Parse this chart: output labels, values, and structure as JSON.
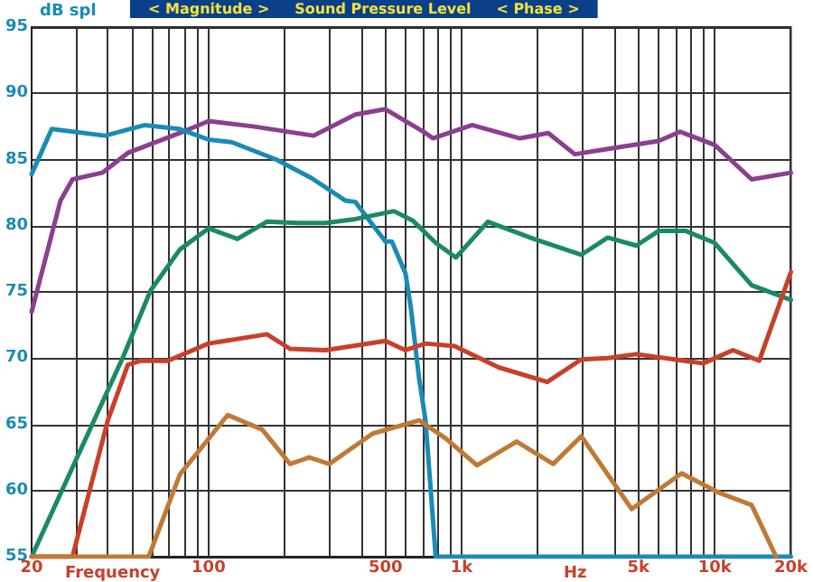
{
  "chart_data": {
    "type": "line",
    "title": "< Magnitude >     Sound Pressure Level     < Phase >",
    "ylabel": "dB spl",
    "xlabel": "Frequency",
    "annotations": [
      "Hz"
    ],
    "log": "x",
    "grid": true,
    "marker": "none",
    "line_style": "solid",
    "xlim": [
      20,
      20000
    ],
    "ylim": [
      55,
      95
    ],
    "xticks": [
      20,
      {
        "value": 30,
        "label": null
      },
      {
        "value": 40,
        "label": null
      },
      {
        "value": 50,
        "label": null
      },
      {
        "value": 60,
        "label": null
      },
      {
        "value": 70,
        "label": null
      },
      {
        "value": 80,
        "label": null
      },
      {
        "value": 90,
        "label": null
      },
      100,
      {
        "value": 200,
        "label": null
      },
      {
        "value": 300,
        "label": null
      },
      {
        "value": 400,
        "label": null
      },
      500,
      {
        "value": 600,
        "label": null
      },
      {
        "value": 700,
        "label": null
      },
      {
        "value": 800,
        "label": null
      },
      {
        "value": 900,
        "label": null
      },
      {
        "value": 1000,
        "label": "1k"
      },
      {
        "value": 2000,
        "label": null
      },
      {
        "value": 3000,
        "label": null
      },
      {
        "value": 4000,
        "label": null
      },
      {
        "value": 5000,
        "label": "5k"
      },
      {
        "value": 6000,
        "label": null
      },
      {
        "value": 7000,
        "label": null
      },
      {
        "value": 8000,
        "label": null
      },
      {
        "value": 9000,
        "label": null
      },
      {
        "value": 10000,
        "label": "10k"
      },
      {
        "value": 20000,
        "label": "20k"
      }
    ],
    "yticks": [
      55,
      60,
      65,
      70,
      75,
      80,
      85,
      90,
      95
    ],
    "series": [
      {
        "color": "#8b3f8f",
        "x": [
          20,
          26,
          29,
          38,
          48,
          77,
          100,
          150,
          260,
          380,
          500,
          720,
          770,
          1100,
          1700,
          2200,
          2800,
          3800,
          6000,
          7300,
          10000,
          14000,
          20000
        ],
        "values": [
          73.5,
          81.9,
          83.5,
          84.0,
          85.5,
          87.0,
          87.9,
          87.5,
          86.8,
          88.4,
          88.8,
          87.0,
          86.6,
          87.6,
          86.6,
          87.0,
          85.4,
          85.8,
          86.4,
          87.1,
          86.1,
          83.5,
          84.0
        ]
      },
      {
        "color": "#1a8bb5",
        "x": [
          20,
          24,
          39,
          56,
          77,
          100,
          124,
          185,
          255,
          347,
          380,
          420,
          500,
          530,
          600,
          630,
          680,
          720,
          790,
          20000
        ],
        "values": [
          83.9,
          87.3,
          86.8,
          87.6,
          87.3,
          86.5,
          86.3,
          85.0,
          83.6,
          81.9,
          81.8,
          80.7,
          78.8,
          78.8,
          76.4,
          73.8,
          68.4,
          65.3,
          55,
          55
        ]
      },
      {
        "color": "#1a8a64",
        "x": [
          20,
          46,
          59,
          77,
          100,
          130,
          170,
          225,
          290,
          380,
          540,
          640,
          790,
          950,
          1270,
          1930,
          2970,
          3780,
          4900,
          6000,
          7700,
          10000,
          14000,
          20000
        ],
        "values": [
          55,
          70.1,
          75.1,
          78.2,
          79.8,
          79.0,
          80.3,
          80.2,
          80.2,
          80.5,
          81.1,
          80.4,
          78.7,
          77.6,
          80.3,
          79.0,
          77.8,
          79.1,
          78.5,
          79.6,
          79.6,
          78.7,
          75.5,
          74.4
        ]
      },
      {
        "color": "#c8402a",
        "x": [
          20,
          29,
          40,
          48,
          54,
          69,
          100,
          170,
          210,
          290,
          500,
          600,
          720,
          940,
          1400,
          2180,
          2970,
          3780,
          4900,
          9000,
          11800,
          15000,
          20000
        ],
        "values": [
          55,
          55,
          65.3,
          69.5,
          69.8,
          69.8,
          71.1,
          71.8,
          70.7,
          70.6,
          71.3,
          70.6,
          71.1,
          70.9,
          69.3,
          68.2,
          69.9,
          70.0,
          70.3,
          69.6,
          70.6,
          69.8,
          76.5
        ]
      },
      {
        "color": "#c07a35",
        "x": [
          20,
          58,
          77,
          119,
          163,
          210,
          250,
          300,
          445,
          680,
          870,
          1150,
          1650,
          2300,
          2970,
          4700,
          7400,
          10500,
          14000,
          17500
        ],
        "values": [
          55,
          55,
          61.2,
          65.7,
          64.6,
          62.0,
          62.5,
          62.0,
          64.3,
          65.3,
          63.9,
          61.9,
          63.7,
          62.0,
          64.1,
          58.6,
          61.3,
          59.8,
          58.9,
          55
        ]
      }
    ]
  }
}
